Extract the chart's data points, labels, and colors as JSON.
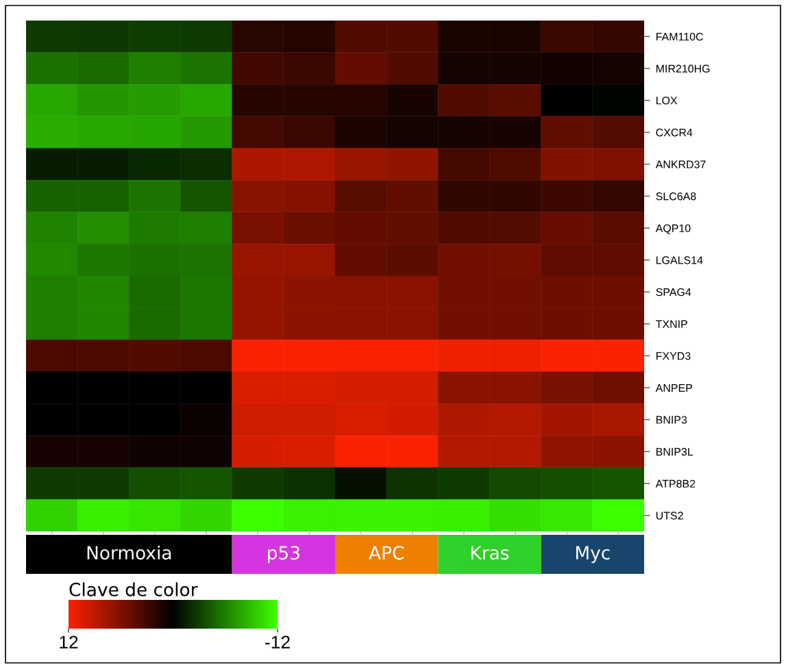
{
  "chart_data": [
    {
      "type": "heatmap",
      "categories": [
        null,
        null,
        null,
        null,
        null,
        null,
        null,
        null,
        null,
        null,
        null,
        null
      ],
      "y_categories": [
        "FAM110C",
        "MIR210HG",
        "LOX",
        "CXCR4",
        "ANKRD37",
        "SLC6A8",
        "AQP10",
        "LGALS14",
        "SPAG4",
        "TXNIP",
        "FXYD3",
        "ANPEP",
        "BNIP3",
        "BNIP3L",
        "ATP8B2",
        "UTS2"
      ],
      "cells": [
        [
          -2.8,
          -2.6,
          -3.0,
          -2.8,
          2.0,
          1.8,
          3.9,
          3.9,
          1.3,
          1.3,
          2.8,
          2.6
        ],
        [
          -5.3,
          -5.0,
          -6.0,
          -5.4,
          3.1,
          2.8,
          4.7,
          3.9,
          1.0,
          1.0,
          0.8,
          1.0
        ],
        [
          -7.8,
          -7.1,
          -7.4,
          -7.8,
          1.9,
          1.9,
          1.8,
          1.1,
          3.9,
          4.3,
          0.0,
          -0.2
        ],
        [
          -8.1,
          -7.8,
          -7.7,
          -7.2,
          3.2,
          2.8,
          1.4,
          1.0,
          1.0,
          1.2,
          4.6,
          4.1
        ],
        [
          -1.4,
          -1.4,
          -1.8,
          -2.1,
          8.2,
          8.4,
          7.4,
          6.9,
          3.2,
          3.8,
          6.2,
          6.1
        ],
        [
          -4.6,
          -4.6,
          -5.5,
          -4.0,
          6.5,
          6.4,
          4.3,
          4.6,
          2.4,
          2.4,
          2.9,
          2.5
        ],
        [
          -6.1,
          -6.7,
          -5.8,
          -6.0,
          5.8,
          5.1,
          4.7,
          4.6,
          3.9,
          4.1,
          4.9,
          4.4
        ],
        [
          -6.4,
          -5.6,
          -5.3,
          -5.4,
          7.3,
          7.3,
          4.7,
          4.4,
          5.4,
          5.6,
          4.5,
          4.5
        ],
        [
          -6.0,
          -6.3,
          -5.0,
          -5.6,
          7.1,
          6.7,
          6.6,
          6.6,
          5.4,
          5.4,
          5.2,
          5.2
        ],
        [
          -6.0,
          -6.3,
          -5.0,
          -5.6,
          7.1,
          6.7,
          6.6,
          6.6,
          5.4,
          5.4,
          5.2,
          5.2
        ],
        [
          3.5,
          3.5,
          3.9,
          3.6,
          11.9,
          11.9,
          11.9,
          11.9,
          11.4,
          11.4,
          12.0,
          12.0
        ],
        [
          0.0,
          0.0,
          0.1,
          0.0,
          10.4,
          10.4,
          10.1,
          10.1,
          6.6,
          6.6,
          5.8,
          5.3
        ],
        [
          0.0,
          0.0,
          0.0,
          0.5,
          9.8,
          9.8,
          10.4,
          10.0,
          8.4,
          8.6,
          7.7,
          8.1
        ],
        [
          1.1,
          1.1,
          0.7,
          0.7,
          10.2,
          10.4,
          12.0,
          12.0,
          8.6,
          8.6,
          6.8,
          6.7
        ],
        [
          -2.8,
          -2.8,
          -3.7,
          -4.0,
          -2.8,
          -2.3,
          -0.8,
          -2.4,
          -2.8,
          -3.4,
          -3.7,
          -4.0
        ],
        [
          -9.8,
          -11.2,
          -10.7,
          -10.0,
          -12.0,
          -11.3,
          -11.3,
          -11.3,
          -11.2,
          -10.5,
          -10.9,
          -12.0
        ]
      ],
      "clim": [
        12,
        -12
      ],
      "cticks": [
        12,
        -12
      ],
      "clabel": "Clave de color"
    },
    {
      "type": "other",
      "categories": [
        "Normoxia",
        null,
        null,
        null,
        "p53",
        null,
        "APC",
        null,
        "Kras",
        null,
        "Myc",
        null
      ],
      "colors": [
        "#000000",
        "#000000",
        "#000000",
        "#000000",
        "#d535e0",
        "#d535e0",
        "#ee8000",
        "#ee8000",
        "#30d02a",
        "#30d02a",
        "#17456b",
        "#17456b"
      ]
    }
  ]
}
